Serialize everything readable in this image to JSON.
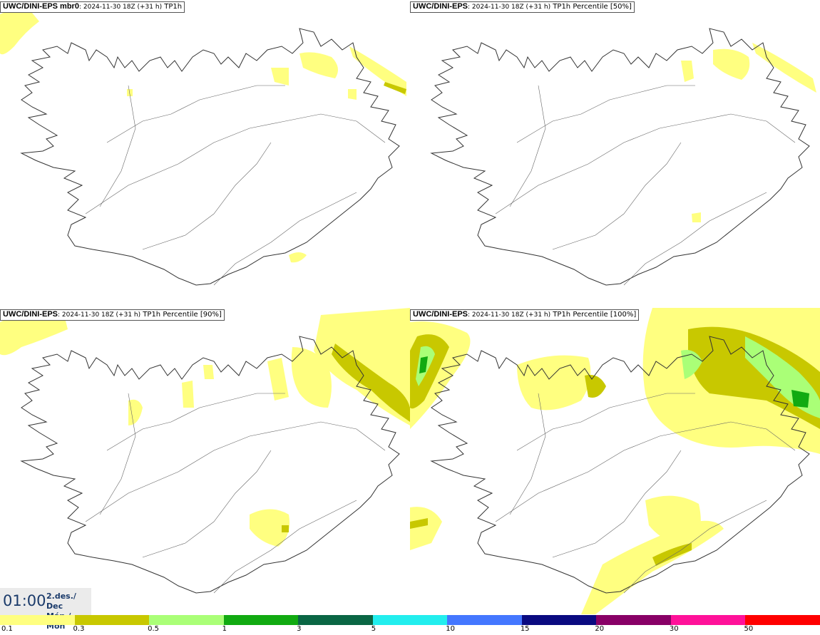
{
  "panels": [
    {
      "model": "UWC/DINI-EPS mbr0",
      "run": ": 2024-11-30 18Z (+31 h)",
      "param": " TP1h"
    },
    {
      "model": "UWC/DINI-EPS",
      "run": ": 2024-11-30 18Z (+31 h)",
      "param": " TP1h Percentile [50%]"
    },
    {
      "model": "UWC/DINI-EPS",
      "run": ": 2024-11-30 18Z (+31 h)",
      "param": " TP1h Percentile [90%]"
    },
    {
      "model": "UWC/DINI-EPS",
      "run": ": 2024-11-30 18Z (+31 h)",
      "param": " TP1h Percentile [100%]"
    }
  ],
  "valid_time": {
    "time": "01:00",
    "date_line1": "2.des./ Dec",
    "date_line2": "Mán./ Mon"
  },
  "legend": {
    "colors": [
      "#ffff80",
      "#c8c800",
      "#aaff77",
      "#11aa11",
      "#0a6644",
      "#22eeee",
      "#4477ff",
      "#0a0a80",
      "#880066",
      "#ff1199",
      "#ff0000"
    ],
    "ticks": [
      "0.1",
      "0.3",
      "0.5",
      "1",
      "3",
      "5",
      "10",
      "15",
      "20",
      "30",
      "50"
    ]
  }
}
